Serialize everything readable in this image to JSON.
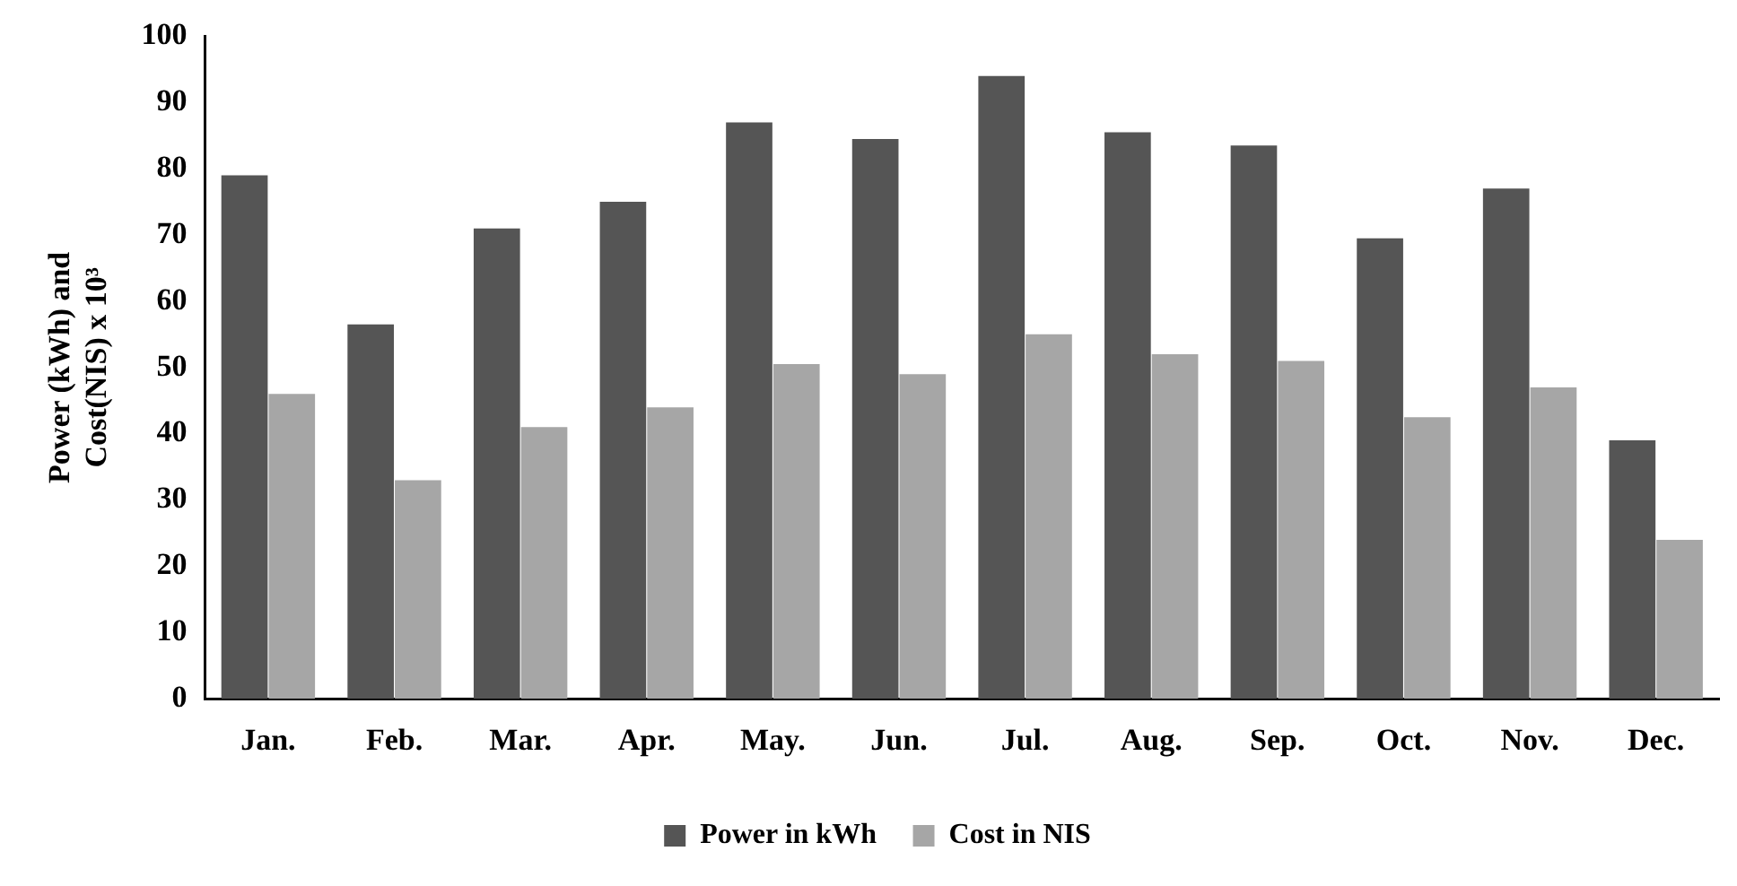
{
  "chart_data": {
    "type": "bar",
    "ylabel": "Power (kWh) and Cost(NIS) x 10³",
    "categories": [
      "Jan.",
      "Feb.",
      "Mar.",
      "Apr.",
      "May.",
      "Jun.",
      "Jul.",
      "Aug.",
      "Sep.",
      "Oct.",
      "Nov.",
      "Dec."
    ],
    "series": [
      {
        "name": "Power in kWh",
        "color": "#555555",
        "values": [
          79,
          56.5,
          71,
          75,
          87,
          84.5,
          94,
          85.5,
          83.5,
          69.5,
          77,
          39
        ]
      },
      {
        "name": "Cost in NIS",
        "color": "#a6a6a6",
        "values": [
          46,
          33,
          41,
          44,
          50.5,
          49,
          55,
          52,
          51,
          42.5,
          47,
          24
        ]
      }
    ],
    "ylim": [
      0,
      100
    ],
    "yticks": [
      0,
      10,
      20,
      30,
      40,
      50,
      60,
      70,
      80,
      90,
      100
    ],
    "grid": false,
    "legend": "bottom"
  }
}
